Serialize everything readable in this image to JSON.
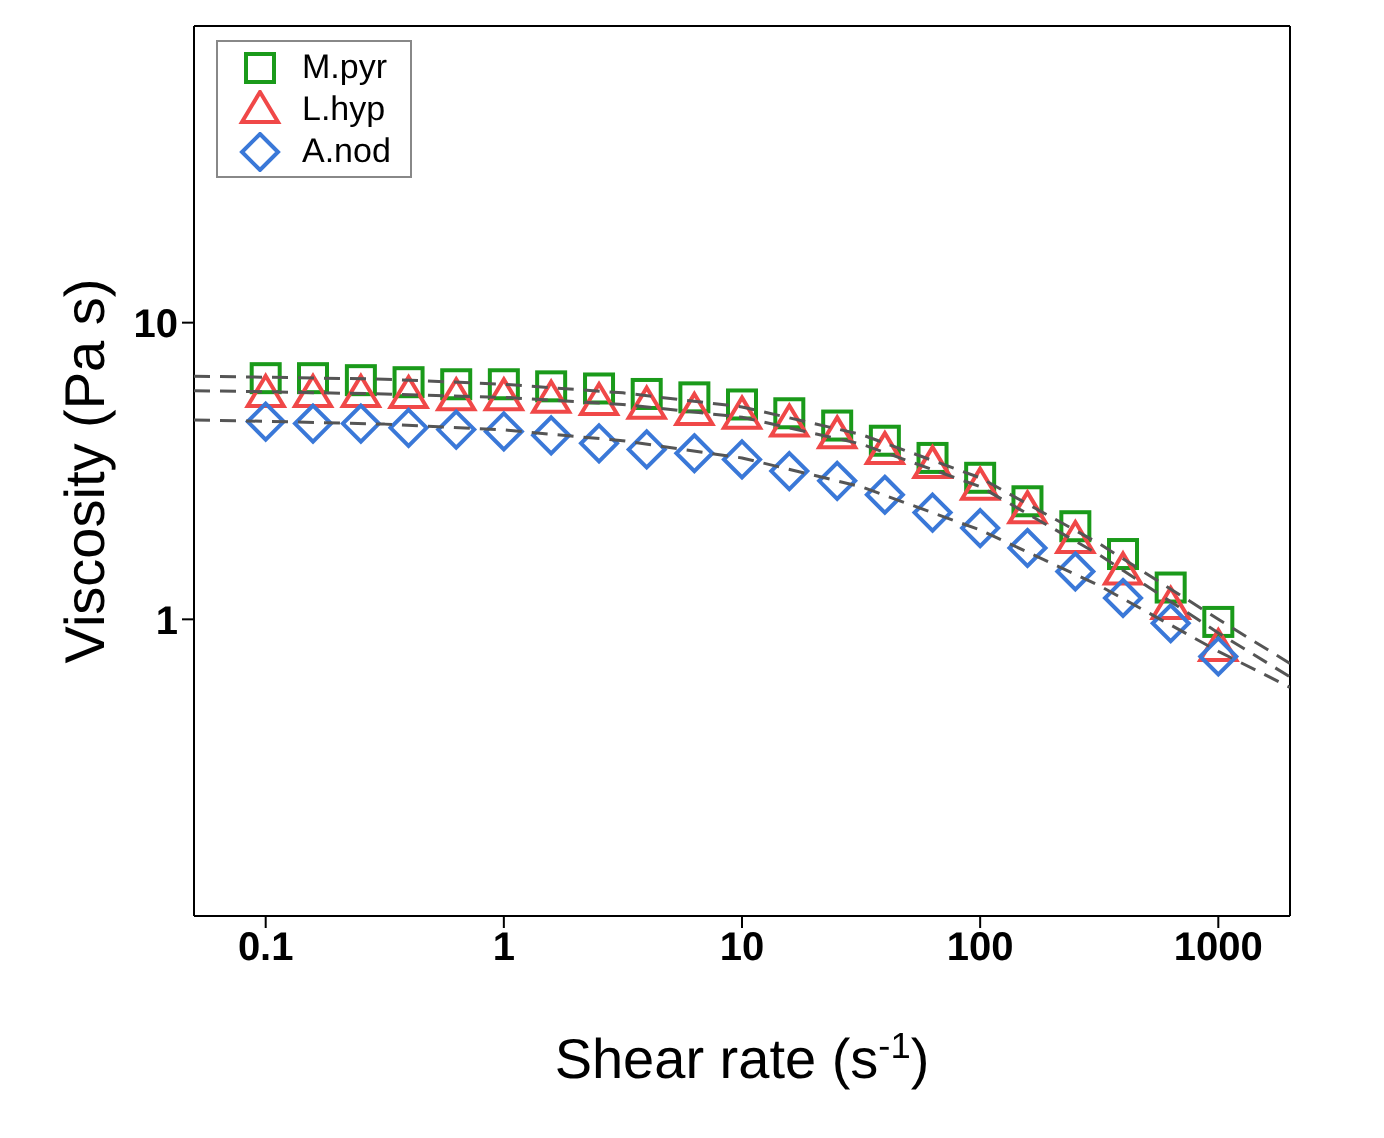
{
  "chart_data": {
    "type": "scatter",
    "xlabel": "Shear rate (s$^{-1}$)",
    "ylabel": "Viscosity (Pa s)",
    "log": "xy",
    "xlim": [
      0.05,
      2000
    ],
    "ylim": [
      0.1,
      100
    ],
    "xticks": [
      0.1,
      1,
      10,
      100,
      1000
    ],
    "yticks": [
      1,
      10
    ],
    "legend": "top left",
    "x": [
      0.1,
      0.158,
      0.251,
      0.398,
      0.631,
      1,
      1.58,
      2.51,
      3.98,
      6.31,
      10,
      15.8,
      25.1,
      39.8,
      63.1,
      100,
      158,
      251,
      398,
      631,
      1000
    ],
    "series": [
      {
        "name": "M.pyr",
        "color": "#1a9a1a",
        "marker": "square",
        "values": [
          6.5,
          6.5,
          6.4,
          6.3,
          6.2,
          6.2,
          6.1,
          6.0,
          5.75,
          5.6,
          5.3,
          4.95,
          4.5,
          4.0,
          3.5,
          3.0,
          2.5,
          2.06,
          1.66,
          1.28,
          0.98
        ]
      },
      {
        "name": "L.hyp",
        "color": "#f04848",
        "marker": "triangle",
        "values": [
          5.75,
          5.75,
          5.75,
          5.7,
          5.6,
          5.6,
          5.5,
          5.4,
          5.25,
          5.0,
          4.86,
          4.57,
          4.17,
          3.69,
          3.31,
          2.8,
          2.33,
          1.85,
          1.45,
          1.11,
          0.8
        ]
      },
      {
        "name": "A.nod",
        "color": "#3a78d8",
        "marker": "diamond",
        "values": [
          4.64,
          4.57,
          4.57,
          4.42,
          4.36,
          4.3,
          4.17,
          3.92,
          3.74,
          3.63,
          3.46,
          3.16,
          2.93,
          2.63,
          2.29,
          2.03,
          1.74,
          1.45,
          1.18,
          0.97,
          0.75
        ]
      },
      {
        "type": "line",
        "color": "#555555",
        "line_style": "dashed",
        "marker": "none",
        "x": [
          0.05,
          0.1,
          0.316,
          1,
          3.16,
          10,
          31.6,
          100,
          316,
          1000,
          2000
        ],
        "values": [
          6.6,
          6.55,
          6.45,
          6.2,
          5.8,
          5.2,
          4.2,
          3.0,
          1.8,
          1.0,
          0.71
        ]
      },
      {
        "type": "line",
        "color": "#555555",
        "line_style": "dashed",
        "marker": "none",
        "x": [
          0.05,
          0.1,
          0.316,
          1,
          3.16,
          10,
          31.6,
          100,
          316,
          1000,
          2000
        ],
        "values": [
          5.9,
          5.85,
          5.75,
          5.6,
          5.3,
          4.8,
          3.9,
          2.8,
          1.65,
          0.9,
          0.64
        ]
      },
      {
        "type": "line",
        "color": "#555555",
        "line_style": "dashed",
        "marker": "none",
        "x": [
          0.05,
          0.1,
          0.316,
          1,
          3.16,
          10,
          31.6,
          100,
          316,
          1000,
          2000
        ],
        "values": [
          4.7,
          4.65,
          4.55,
          4.35,
          4.0,
          3.5,
          2.8,
          2.0,
          1.3,
          0.78,
          0.59
        ]
      }
    ]
  }
}
